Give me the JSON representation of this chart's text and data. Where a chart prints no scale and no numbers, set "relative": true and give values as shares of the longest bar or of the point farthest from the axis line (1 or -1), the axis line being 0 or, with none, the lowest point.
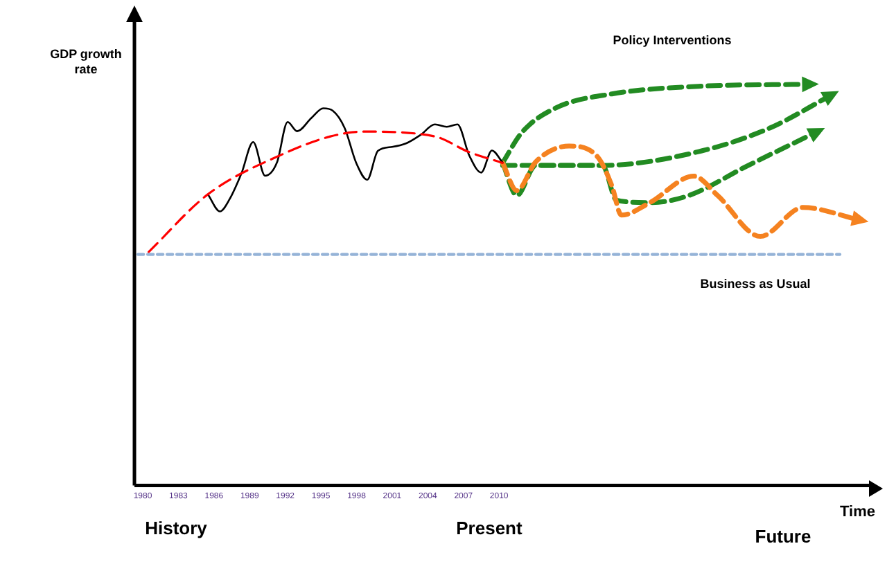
{
  "chart_data": {
    "type": "line",
    "relative": true,
    "ylabel": "GDP growth rate",
    "xlabel": "Time",
    "annotations": [
      "Policy Interventions",
      "Business as Usual",
      "History",
      "Present",
      "Future"
    ],
    "xlim": [
      1979.3,
      2041.5
    ],
    "xticks": [
      1980,
      1983,
      1986,
      1989,
      1992,
      1995,
      1998,
      2001,
      2004,
      2007,
      2010
    ],
    "grid": false,
    "legend": false,
    "marker": "none",
    "tick_labels": "x",
    "series": [
      {
        "color": "#95b3d7",
        "line_style": "dotted",
        "x": [
          1979.6,
          2038.7
        ],
        "values": [
          0.576,
          0.576
        ]
      },
      {
        "color": "#ff0000",
        "line_style": "dashed",
        "x": [
          1980.5,
          1985.5,
          1991.8,
          1995.8,
          1998.6,
          2004.6,
          2007.4,
          2010.3
        ],
        "values": [
          0.582,
          0.726,
          0.826,
          0.87,
          0.882,
          0.87,
          0.832,
          0.804
        ]
      },
      {
        "color": "#000000",
        "line_style": "solid",
        "x": [
          1985.5,
          1986.5,
          1987.3,
          1988.3,
          1989.3,
          1990.3,
          1991.3,
          1992.2,
          1993.0,
          1994.2,
          1995.2,
          1996.0,
          1997.0,
          1998.0,
          1998.9,
          1999.8,
          2001.0,
          2002.2,
          2003.4,
          2004.6,
          2005.6,
          2006.5,
          2007.5,
          2008.5,
          2009.4,
          2010.3
        ],
        "values": [
          0.725,
          0.683,
          0.713,
          0.777,
          0.856,
          0.772,
          0.805,
          0.906,
          0.883,
          0.916,
          0.94,
          0.934,
          0.891,
          0.802,
          0.762,
          0.834,
          0.844,
          0.853,
          0.874,
          0.9,
          0.894,
          0.9,
          0.822,
          0.78,
          0.835,
          0.805
        ]
      },
      {
        "color": "#f58220",
        "line_style": "dashed",
        "x": [
          2010.3,
          2011.5,
          2013.1,
          2015.9,
          2018.3,
          2019.5,
          2020.3,
          2022.7,
          2026.4,
          2028.4,
          2032.0,
          2035.6,
          2040.2
        ],
        "values": [
          0.804,
          0.735,
          0.807,
          0.846,
          0.819,
          0.747,
          0.674,
          0.705,
          0.771,
          0.723,
          0.621,
          0.693,
          0.663
        ]
      },
      {
        "color": "#228b22",
        "line_style": "dashed",
        "x": [
          2010.3,
          2011.9,
          2014.7,
          2019.5,
          2026.8,
          2036.0
        ],
        "values": [
          0.804,
          0.879,
          0.94,
          0.976,
          0.995,
          1
        ]
      },
      {
        "color": "#228b22",
        "line_style": "dashed",
        "x": [
          2010.3,
          2018.7,
          2026.8,
          2032.8,
          2037.8
        ],
        "values": [
          0.798,
          0.798,
          0.832,
          0.891,
          0.97
        ]
      },
      {
        "color": "#228b22",
        "line_style": "dashed",
        "x": [
          2010.3,
          2011.5,
          2013.1,
          2018.7,
          2019.9,
          2022.7,
          2026.0,
          2030.8,
          2036.6
        ],
        "values": [
          0.804,
          0.723,
          0.798,
          0.798,
          0.711,
          0.705,
          0.723,
          0.795,
          0.879
        ]
      }
    ]
  }
}
